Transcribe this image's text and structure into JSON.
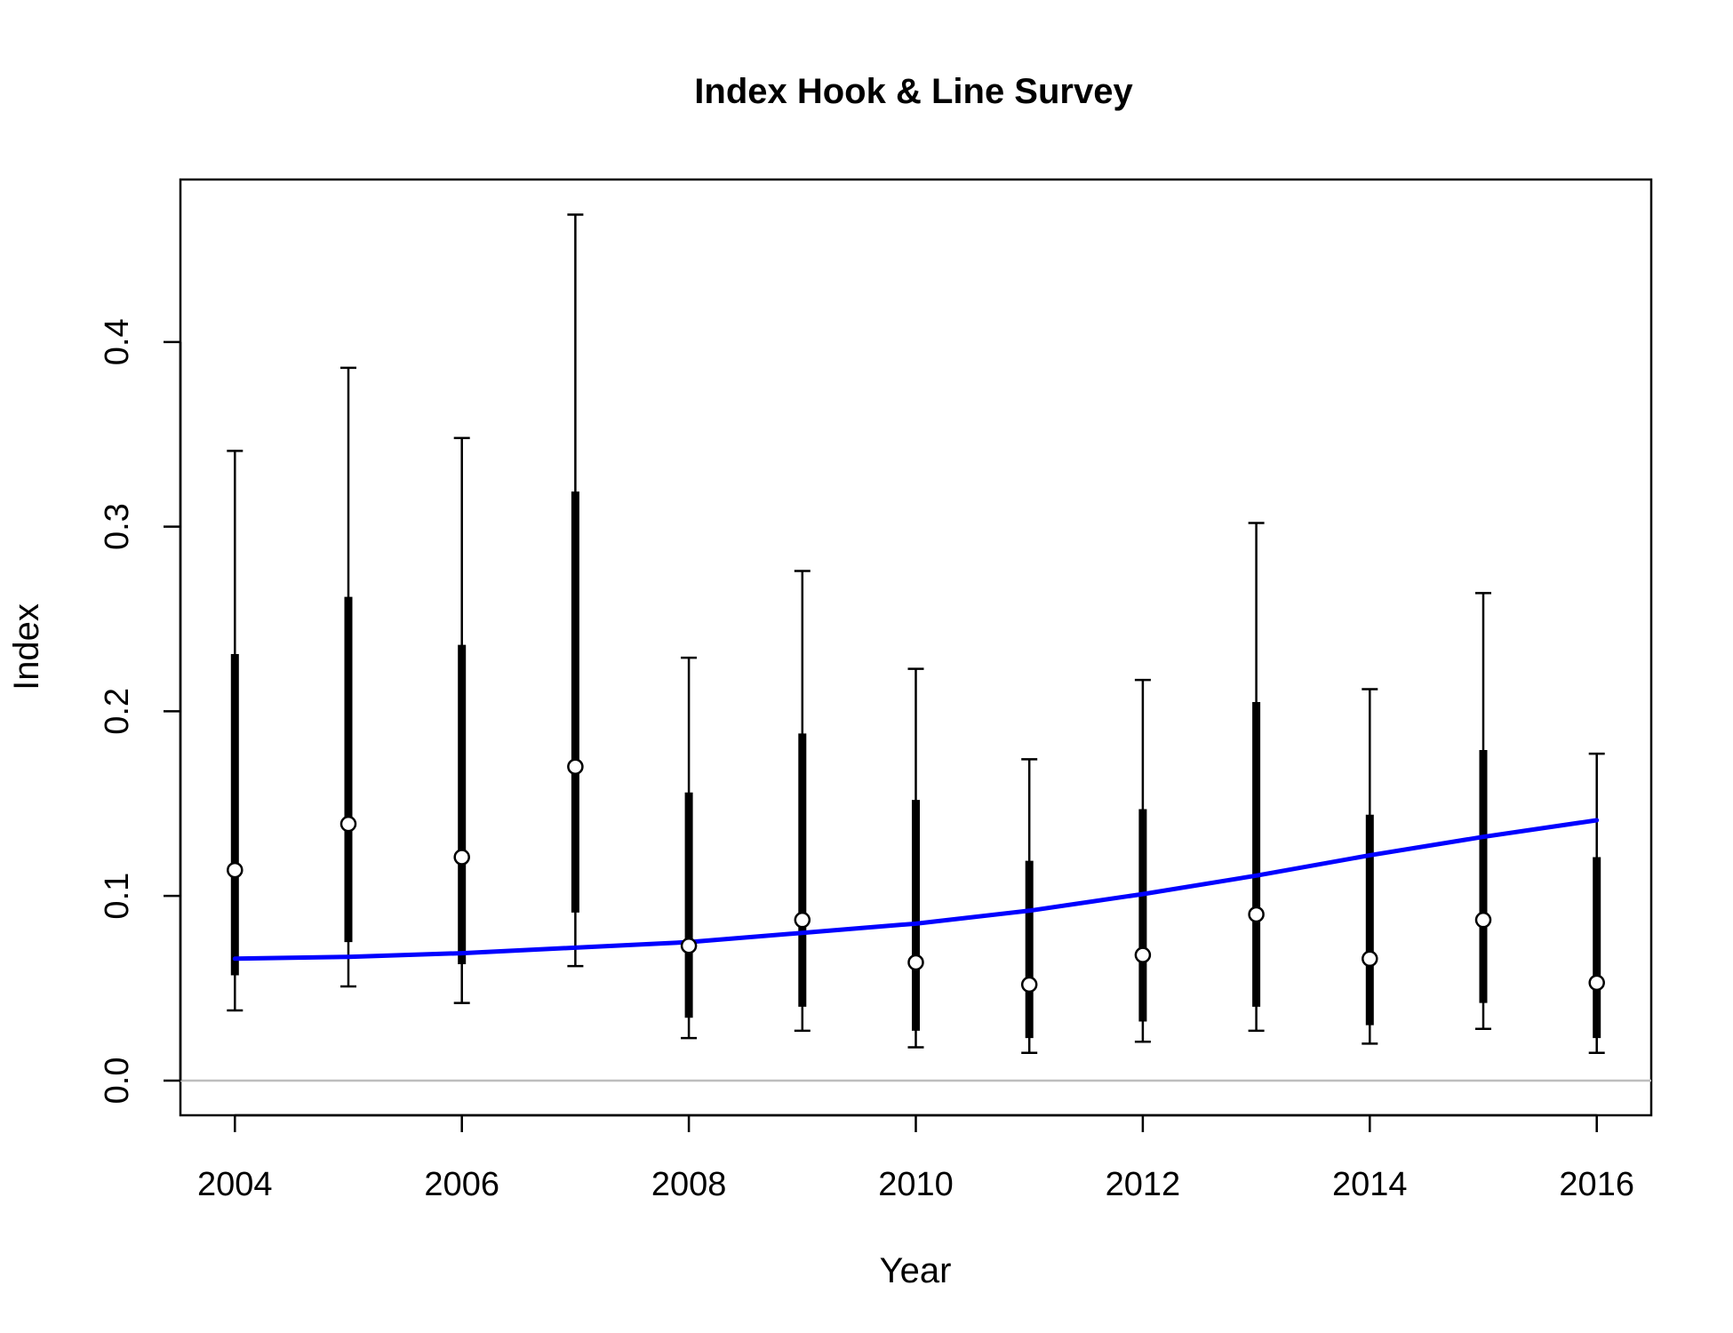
{
  "chart_data": {
    "type": "scatter",
    "title": "Index Hook & Line Survey",
    "xlabel": "Year",
    "ylabel": "Index",
    "xlim": [
      2003.52,
      2016.48
    ],
    "ylim": [
      -0.0188,
      0.488
    ],
    "x_ticks": [
      2004,
      2006,
      2008,
      2010,
      2012,
      2014,
      2016
    ],
    "x_tick_labels": [
      "2004",
      "2006",
      "2008",
      "2010",
      "2012",
      "2014",
      "2016"
    ],
    "y_ticks": [
      0.0,
      0.1,
      0.2,
      0.3,
      0.4
    ],
    "y_tick_labels": [
      "0.0",
      "0.1",
      "0.2",
      "0.3",
      "0.4"
    ],
    "reference_line": {
      "y": 0,
      "color": "#bebebe"
    },
    "grid": false,
    "legend": "none",
    "colors": {
      "observed": "#000000",
      "fitted": "#0000ff",
      "point_fill": "#ffffff"
    },
    "series": [
      {
        "kind": "observed",
        "x": [
          2004,
          2005,
          2006,
          2007,
          2008,
          2009,
          2010,
          2011,
          2012,
          2013,
          2014,
          2015,
          2016
        ],
        "y": [
          0.114,
          0.139,
          0.121,
          0.17,
          0.073,
          0.087,
          0.064,
          0.052,
          0.068,
          0.09,
          0.066,
          0.087,
          0.053
        ],
        "lower_outer": [
          0.038,
          0.051,
          0.042,
          0.062,
          0.023,
          0.027,
          0.018,
          0.015,
          0.021,
          0.027,
          0.02,
          0.028,
          0.015
        ],
        "upper_outer": [
          0.341,
          0.386,
          0.348,
          0.469,
          0.229,
          0.276,
          0.223,
          0.174,
          0.217,
          0.302,
          0.212,
          0.264,
          0.177
        ],
        "lower_inner": [
          0.057,
          0.075,
          0.063,
          0.091,
          0.034,
          0.04,
          0.027,
          0.023,
          0.032,
          0.04,
          0.03,
          0.042,
          0.023
        ],
        "upper_inner": [
          0.231,
          0.262,
          0.236,
          0.319,
          0.156,
          0.188,
          0.152,
          0.119,
          0.147,
          0.205,
          0.144,
          0.179,
          0.121
        ]
      },
      {
        "kind": "fitted",
        "x": [
          2004,
          2005,
          2006,
          2007,
          2008,
          2009,
          2010,
          2011,
          2012,
          2013,
          2014,
          2015,
          2016
        ],
        "y": [
          0.066,
          0.067,
          0.069,
          0.072,
          0.075,
          0.08,
          0.085,
          0.092,
          0.101,
          0.111,
          0.122,
          0.132,
          0.141
        ]
      }
    ]
  }
}
